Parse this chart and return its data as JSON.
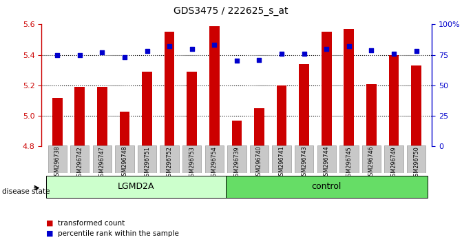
{
  "title": "GDS3475 / 222625_s_at",
  "samples": [
    "GSM296738",
    "GSM296742",
    "GSM296747",
    "GSM296748",
    "GSM296751",
    "GSM296752",
    "GSM296753",
    "GSM296754",
    "GSM296739",
    "GSM296740",
    "GSM296741",
    "GSM296743",
    "GSM296744",
    "GSM296745",
    "GSM296746",
    "GSM296749",
    "GSM296750"
  ],
  "transformed_count": [
    5.12,
    5.19,
    5.19,
    5.03,
    5.29,
    5.55,
    5.29,
    5.59,
    4.97,
    5.05,
    5.2,
    5.34,
    5.55,
    5.57,
    5.21,
    5.4,
    5.33
  ],
  "percentile_rank": [
    75,
    75,
    77,
    73,
    78,
    82,
    80,
    83,
    70,
    71,
    76,
    76,
    80,
    82,
    79,
    76,
    78
  ],
  "ylim_left": [
    4.8,
    5.6
  ],
  "ylim_right": [
    0,
    100
  ],
  "yticks_left": [
    4.8,
    5.0,
    5.2,
    5.4,
    5.6
  ],
  "yticks_right": [
    0,
    25,
    50,
    75,
    100
  ],
  "ytick_labels_right": [
    "0",
    "25",
    "50",
    "75",
    "100%"
  ],
  "bar_color": "#cc0000",
  "dot_color": "#0000cc",
  "bar_bottom": 4.8,
  "lgmd2a_count": 8,
  "control_count": 9,
  "groups": [
    {
      "label": "LGMD2A",
      "start": 0,
      "end": 8,
      "color": "#ccffcc"
    },
    {
      "label": "control",
      "start": 8,
      "end": 17,
      "color": "#66dd66"
    }
  ],
  "disease_state_label": "disease state",
  "legend_bar_label": "transformed count",
  "legend_dot_label": "percentile rank within the sample",
  "axis_color_left": "#cc0000",
  "axis_color_right": "#0000cc",
  "background_plot": "#ffffff",
  "xtick_bg": "#c8c8c8"
}
